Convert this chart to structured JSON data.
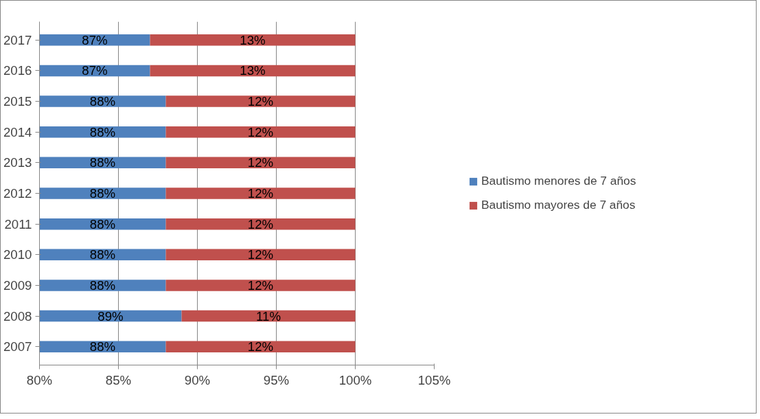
{
  "chart_data": {
    "type": "bar",
    "orientation": "horizontal",
    "stacked": true,
    "categories": [
      "2017",
      "2016",
      "2015",
      "2014",
      "2013",
      "2012",
      "2011",
      "2010",
      "2009",
      "2008",
      "2007"
    ],
    "series": [
      {
        "name": "Bautismo menores de 7 años",
        "color": "#4f81bd",
        "values": [
          87,
          87,
          88,
          88,
          88,
          88,
          88,
          88,
          88,
          89,
          88
        ],
        "value_labels": [
          "87%",
          "87%",
          "88%",
          "88%",
          "88%",
          "88%",
          "88%",
          "88%",
          "88%",
          "89%",
          "88%"
        ]
      },
      {
        "name": "Bautismo mayores de 7 años",
        "color": "#c0504d",
        "base": [
          87,
          87,
          88,
          88,
          88,
          88,
          88,
          88,
          88,
          89,
          88
        ],
        "values": [
          13,
          13,
          12,
          12,
          12,
          12,
          12,
          12,
          12,
          11,
          12
        ],
        "value_labels": [
          "13%",
          "13%",
          "12%",
          "12%",
          "12%",
          "12%",
          "12%",
          "12%",
          "12%",
          "11%",
          "12%"
        ]
      }
    ],
    "xlim": [
      80,
      105
    ],
    "xticks": [
      {
        "value": 80,
        "label": "80%"
      },
      {
        "value": 85,
        "label": "85%"
      },
      {
        "value": 90,
        "label": "90%"
      },
      {
        "value": 95,
        "label": "95%"
      },
      {
        "value": 100,
        "label": "100%"
      },
      {
        "value": 105,
        "label": "105%"
      }
    ],
    "grid": "x",
    "legend": "right"
  }
}
